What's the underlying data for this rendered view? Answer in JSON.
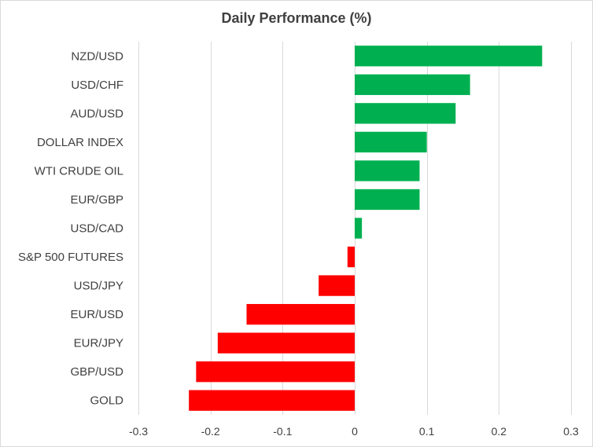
{
  "chart_data": {
    "type": "bar",
    "orientation": "horizontal",
    "title": "Daily Performance (%)",
    "xlabel": "",
    "ylabel": "",
    "categories": [
      "NZD/USD",
      "USD/CHF",
      "AUD/USD",
      "DOLLAR INDEX",
      "WTI CRUDE OIL",
      "EUR/GBP",
      "USD/CAD",
      "S&P 500 FUTURES",
      "USD/JPY",
      "EUR/USD",
      "EUR/JPY",
      "GBP/USD",
      "GOLD"
    ],
    "values": [
      0.26,
      0.16,
      0.14,
      0.1,
      0.09,
      0.09,
      0.01,
      -0.01,
      -0.05,
      -0.15,
      -0.19,
      -0.22,
      -0.23
    ],
    "xlim": [
      -0.3,
      0.3
    ],
    "xticks": [
      -0.3,
      -0.2,
      -0.1,
      0,
      0.1,
      0.2,
      0.3
    ],
    "xtick_labels": [
      "-0.3",
      "-0.2",
      "-0.1",
      "0",
      "0.1",
      "0.2",
      "0.3"
    ],
    "grid": "vertical",
    "legend": "none",
    "colors": {
      "positive": "#00b050",
      "negative": "#ff0000",
      "grid": "#d9d9d9",
      "text": "#404040"
    }
  }
}
